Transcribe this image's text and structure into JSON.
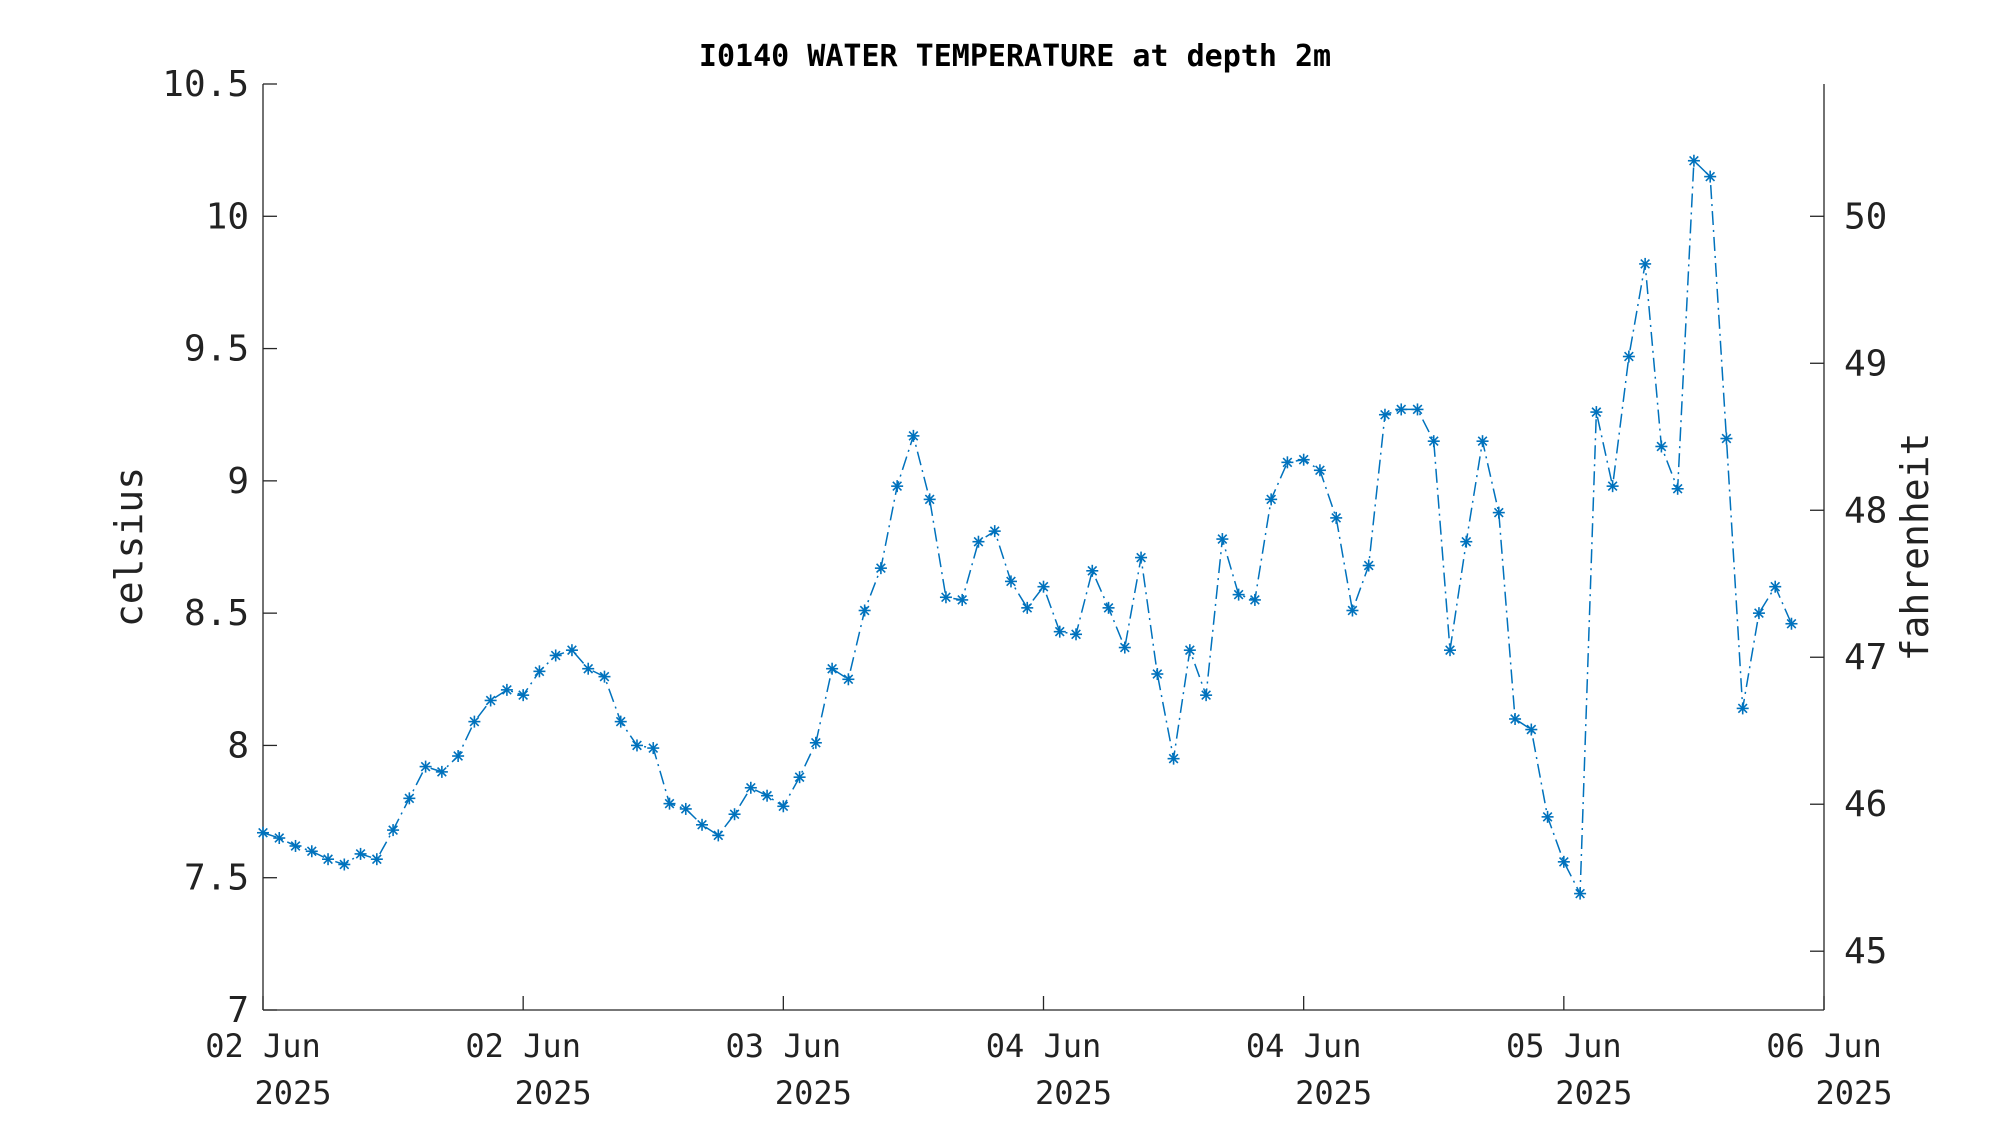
{
  "colors": {
    "series": "#0072bd",
    "axis": "#262626",
    "text": "#222222"
  },
  "chart_data": {
    "type": "line",
    "title": "I0140 WATER TEMPERATURE at depth 2m",
    "ylabel": "celsius",
    "y2label": "fahrenheit",
    "xlabel": "",
    "marker": "asterisk",
    "line_style": "dash-dot",
    "grid": false,
    "x_start": "02 Jun 2025 00:00",
    "x_end": "06 Jun 2025 00:00",
    "x_ticks": [
      {
        "day": "02 Jun",
        "year": "2025",
        "time": "02 Jun 2025 00:00"
      },
      {
        "day": "02 Jun",
        "year": "2025",
        "time": "02 Jun 2025 16:00"
      },
      {
        "day": "03 Jun",
        "year": "2025",
        "time": "03 Jun 2025 08:00"
      },
      {
        "day": "04 Jun",
        "year": "2025",
        "time": "04 Jun 2025 00:00"
      },
      {
        "day": "04 Jun",
        "year": "2025",
        "time": "04 Jun 2025 16:00"
      },
      {
        "day": "05 Jun",
        "year": "2025",
        "time": "05 Jun 2025 08:00"
      },
      {
        "day": "06 Jun",
        "year": "2025",
        "time": "06 Jun 2025 00:00"
      }
    ],
    "ylim": [
      7,
      10.5
    ],
    "yticks": [
      "7",
      "7.5",
      "8",
      "8.5",
      "9",
      "9.5",
      "10",
      "10.5"
    ],
    "y2lim": [
      44.6,
      50.9
    ],
    "y2ticks": [
      "45",
      "46",
      "47",
      "48",
      "49",
      "50"
    ],
    "sample_interval_minutes": 60,
    "values": [
      7.67,
      7.65,
      7.62,
      7.6,
      7.57,
      7.55,
      7.59,
      7.57,
      7.68,
      7.8,
      7.92,
      7.9,
      7.96,
      8.09,
      8.17,
      8.21,
      8.19,
      8.28,
      8.34,
      8.36,
      8.29,
      8.26,
      8.09,
      8.0,
      7.99,
      7.78,
      7.76,
      7.7,
      7.66,
      7.74,
      7.84,
      7.81,
      7.77,
      7.88,
      8.01,
      8.29,
      8.25,
      8.51,
      8.67,
      8.98,
      9.17,
      8.93,
      8.56,
      8.55,
      8.77,
      8.81,
      8.62,
      8.52,
      8.6,
      8.43,
      8.42,
      8.66,
      8.52,
      8.37,
      8.71,
      8.27,
      7.95,
      8.36,
      8.19,
      8.78,
      8.57,
      8.55,
      8.93,
      9.07,
      9.08,
      9.04,
      8.86,
      8.51,
      8.68,
      9.25,
      9.27,
      9.27,
      9.15,
      8.36,
      8.77,
      9.15,
      8.88,
      8.1,
      8.06,
      7.73,
      7.56,
      7.44,
      9.26,
      8.98,
      9.47,
      9.82,
      9.13,
      8.97,
      10.21,
      10.15,
      9.16,
      8.14,
      8.5,
      8.6,
      8.46
    ]
  }
}
